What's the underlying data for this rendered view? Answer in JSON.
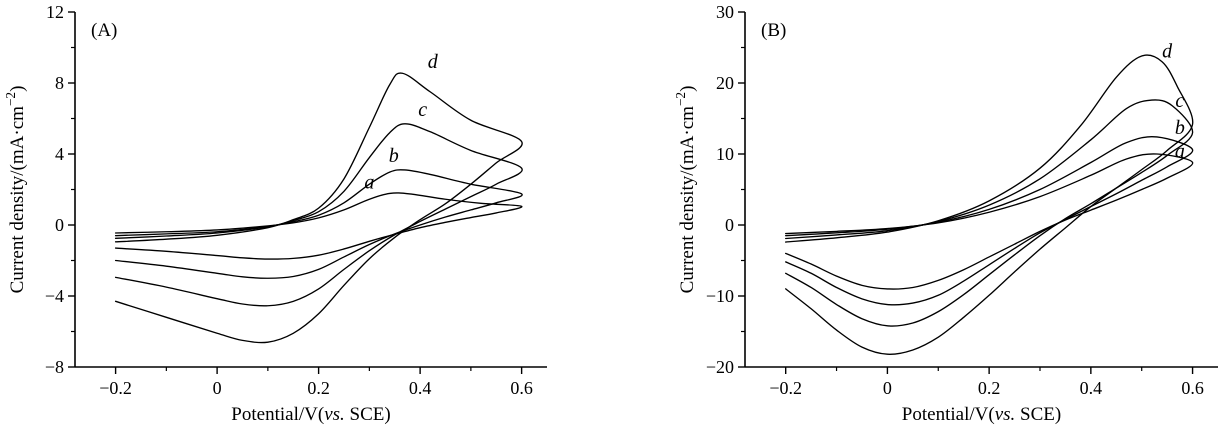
{
  "chart_data": [
    {
      "panel_tag": "(A)",
      "type": "line",
      "chart_kind": "cyclic-voltammogram",
      "title": "",
      "xlabel": "Potential/V(vs. SCE)",
      "ylabel": "Current density/(mA·cm−2)",
      "xlabel_parts": {
        "pre": "Potential/V(",
        "italic": "vs.",
        "post": " SCE)"
      },
      "ylabel_parts": {
        "pre": "Current density/(mA·cm",
        "sup": "−2",
        "post": ")"
      },
      "xlim": [
        -0.28,
        0.65
      ],
      "ylim": [
        -8,
        12
      ],
      "xticks": [
        -0.2,
        0,
        0.2,
        0.4,
        0.6
      ],
      "xtick_labels": [
        "−0.2",
        "0",
        "0.2",
        "0.4",
        "0.6"
      ],
      "xticks_minor": [
        -0.1,
        0.1,
        0.3,
        0.5
      ],
      "yticks": [
        -8,
        -4,
        0,
        4,
        8,
        12
      ],
      "ytick_labels": [
        "−8",
        "−4",
        "0",
        "4",
        "8",
        "12"
      ],
      "yticks_minor": [
        -6,
        -2,
        2,
        6,
        10
      ],
      "legend": "none",
      "grid": false,
      "series": [
        {
          "name": "a",
          "label_x": 0.3,
          "label_y": 2.05,
          "points": [
            [
              -0.2,
              -0.45
            ],
            [
              -0.1,
              -0.38
            ],
            [
              0.0,
              -0.28
            ],
            [
              0.1,
              -0.05
            ],
            [
              0.15,
              0.12
            ],
            [
              0.2,
              0.4
            ],
            [
              0.25,
              0.85
            ],
            [
              0.3,
              1.45
            ],
            [
              0.34,
              1.78
            ],
            [
              0.38,
              1.75
            ],
            [
              0.45,
              1.45
            ],
            [
              0.52,
              1.22
            ],
            [
              0.6,
              1.05
            ],
            [
              0.55,
              0.68
            ],
            [
              0.5,
              0.42
            ],
            [
              0.45,
              0.15
            ],
            [
              0.4,
              -0.15
            ],
            [
              0.35,
              -0.52
            ],
            [
              0.3,
              -0.92
            ],
            [
              0.25,
              -1.35
            ],
            [
              0.2,
              -1.7
            ],
            [
              0.15,
              -1.88
            ],
            [
              0.1,
              -1.92
            ],
            [
              0.05,
              -1.85
            ],
            [
              0.0,
              -1.72
            ],
            [
              -0.1,
              -1.48
            ],
            [
              -0.2,
              -1.3
            ]
          ]
        },
        {
          "name": "b",
          "label_x": 0.348,
          "label_y": 3.55,
          "points": [
            [
              -0.2,
              -0.6
            ],
            [
              -0.1,
              -0.5
            ],
            [
              0.0,
              -0.38
            ],
            [
              0.1,
              -0.08
            ],
            [
              0.15,
              0.18
            ],
            [
              0.2,
              0.55
            ],
            [
              0.25,
              1.25
            ],
            [
              0.3,
              2.3
            ],
            [
              0.34,
              2.98
            ],
            [
              0.37,
              3.1
            ],
            [
              0.42,
              2.85
            ],
            [
              0.5,
              2.3
            ],
            [
              0.6,
              1.75
            ],
            [
              0.55,
              1.25
            ],
            [
              0.5,
              0.85
            ],
            [
              0.45,
              0.45
            ],
            [
              0.4,
              0.0
            ],
            [
              0.35,
              -0.5
            ],
            [
              0.3,
              -1.1
            ],
            [
              0.25,
              -1.8
            ],
            [
              0.2,
              -2.5
            ],
            [
              0.15,
              -2.9
            ],
            [
              0.1,
              -3.0
            ],
            [
              0.05,
              -2.92
            ],
            [
              0.0,
              -2.72
            ],
            [
              -0.1,
              -2.32
            ],
            [
              -0.2,
              -2.0
            ]
          ]
        },
        {
          "name": "c",
          "label_x": 0.405,
          "label_y": 6.15,
          "points": [
            [
              -0.2,
              -0.75
            ],
            [
              -0.1,
              -0.62
            ],
            [
              0.0,
              -0.45
            ],
            [
              0.1,
              -0.1
            ],
            [
              0.15,
              0.25
            ],
            [
              0.2,
              0.75
            ],
            [
              0.25,
              1.9
            ],
            [
              0.3,
              3.8
            ],
            [
              0.34,
              5.2
            ],
            [
              0.37,
              5.7
            ],
            [
              0.42,
              5.25
            ],
            [
              0.5,
              4.2
            ],
            [
              0.6,
              3.2
            ],
            [
              0.55,
              2.3
            ],
            [
              0.5,
              1.6
            ],
            [
              0.45,
              0.9
            ],
            [
              0.4,
              0.2
            ],
            [
              0.35,
              -0.55
            ],
            [
              0.3,
              -1.45
            ],
            [
              0.25,
              -2.5
            ],
            [
              0.2,
              -3.6
            ],
            [
              0.15,
              -4.3
            ],
            [
              0.1,
              -4.55
            ],
            [
              0.05,
              -4.45
            ],
            [
              0.0,
              -4.15
            ],
            [
              -0.1,
              -3.5
            ],
            [
              -0.2,
              -2.95
            ]
          ]
        },
        {
          "name": "d",
          "label_x": 0.425,
          "label_y": 8.85,
          "points": [
            [
              -0.2,
              -0.95
            ],
            [
              -0.1,
              -0.8
            ],
            [
              0.0,
              -0.58
            ],
            [
              0.1,
              -0.15
            ],
            [
              0.15,
              0.3
            ],
            [
              0.2,
              0.95
            ],
            [
              0.25,
              2.6
            ],
            [
              0.3,
              5.5
            ],
            [
              0.34,
              7.9
            ],
            [
              0.365,
              8.55
            ],
            [
              0.42,
              7.5
            ],
            [
              0.5,
              5.9
            ],
            [
              0.6,
              4.7
            ],
            [
              0.55,
              3.5
            ],
            [
              0.5,
              2.3
            ],
            [
              0.45,
              1.2
            ],
            [
              0.4,
              0.3
            ],
            [
              0.35,
              -0.7
            ],
            [
              0.3,
              -1.9
            ],
            [
              0.25,
              -3.4
            ],
            [
              0.2,
              -5.0
            ],
            [
              0.15,
              -6.1
            ],
            [
              0.1,
              -6.6
            ],
            [
              0.05,
              -6.5
            ],
            [
              0.0,
              -6.1
            ],
            [
              -0.1,
              -5.2
            ],
            [
              -0.2,
              -4.3
            ]
          ]
        }
      ]
    },
    {
      "panel_tag": "(B)",
      "type": "line",
      "chart_kind": "cyclic-voltammogram",
      "title": "",
      "xlabel": "Potential/V(vs. SCE)",
      "ylabel": "Current density/(mA·cm−2)",
      "xlabel_parts": {
        "pre": "Potential/V(",
        "italic": "vs.",
        "post": " SCE)"
      },
      "ylabel_parts": {
        "pre": "Current density/(mA·cm",
        "sup": "−2",
        "post": ")"
      },
      "xlim": [
        -0.28,
        0.65
      ],
      "ylim": [
        -20,
        30
      ],
      "xticks": [
        -0.2,
        0,
        0.2,
        0.4,
        0.6
      ],
      "xtick_labels": [
        "−0.2",
        "0",
        "0.2",
        "0.4",
        "0.6"
      ],
      "xticks_minor": [
        -0.1,
        0.1,
        0.3,
        0.5
      ],
      "yticks": [
        -20,
        -10,
        0,
        10,
        20,
        30
      ],
      "ytick_labels": [
        "−20",
        "−10",
        "0",
        "10",
        "20",
        "30"
      ],
      "yticks_minor": [
        -15,
        -5,
        5,
        15,
        25
      ],
      "legend": "none",
      "grid": false,
      "series": [
        {
          "name": "a",
          "label_x": 0.575,
          "label_y": 9.5,
          "points": [
            [
              -0.2,
              -1.2
            ],
            [
              -0.1,
              -0.9
            ],
            [
              0.0,
              -0.5
            ],
            [
              0.1,
              0.3
            ],
            [
              0.2,
              1.8
            ],
            [
              0.3,
              4.0
            ],
            [
              0.4,
              7.0
            ],
            [
              0.47,
              9.3
            ],
            [
              0.53,
              10.0
            ],
            [
              0.6,
              8.8
            ],
            [
              0.55,
              6.6
            ],
            [
              0.5,
              5.0
            ],
            [
              0.45,
              3.5
            ],
            [
              0.4,
              2.1
            ],
            [
              0.35,
              0.7
            ],
            [
              0.3,
              -0.9
            ],
            [
              0.25,
              -2.7
            ],
            [
              0.2,
              -4.5
            ],
            [
              0.15,
              -6.3
            ],
            [
              0.1,
              -7.8
            ],
            [
              0.05,
              -8.8
            ],
            [
              0.0,
              -9.0
            ],
            [
              -0.05,
              -8.5
            ],
            [
              -0.1,
              -7.2
            ],
            [
              -0.15,
              -5.5
            ],
            [
              -0.2,
              -4.0
            ]
          ]
        },
        {
          "name": "b",
          "label_x": 0.575,
          "label_y": 12.8,
          "points": [
            [
              -0.2,
              -1.5
            ],
            [
              -0.1,
              -1.1
            ],
            [
              0.0,
              -0.6
            ],
            [
              0.1,
              0.4
            ],
            [
              0.2,
              2.2
            ],
            [
              0.3,
              5.0
            ],
            [
              0.4,
              8.8
            ],
            [
              0.47,
              11.6
            ],
            [
              0.53,
              12.4
            ],
            [
              0.6,
              10.6
            ],
            [
              0.55,
              8.2
            ],
            [
              0.5,
              6.3
            ],
            [
              0.45,
              4.4
            ],
            [
              0.4,
              2.6
            ],
            [
              0.35,
              0.8
            ],
            [
              0.3,
              -1.1
            ],
            [
              0.25,
              -3.3
            ],
            [
              0.2,
              -5.6
            ],
            [
              0.15,
              -7.9
            ],
            [
              0.1,
              -9.9
            ],
            [
              0.05,
              -11.0
            ],
            [
              0.0,
              -11.2
            ],
            [
              -0.05,
              -10.4
            ],
            [
              -0.1,
              -8.8
            ],
            [
              -0.15,
              -6.8
            ],
            [
              -0.2,
              -5.2
            ]
          ]
        },
        {
          "name": "c",
          "label_x": 0.575,
          "label_y": 16.6,
          "points": [
            [
              -0.2,
              -1.9
            ],
            [
              -0.1,
              -1.4
            ],
            [
              0.0,
              -0.8
            ],
            [
              0.1,
              0.5
            ],
            [
              0.2,
              2.8
            ],
            [
              0.3,
              6.5
            ],
            [
              0.4,
              12.0
            ],
            [
              0.47,
              16.4
            ],
            [
              0.52,
              17.6
            ],
            [
              0.56,
              16.8
            ],
            [
              0.6,
              13.0
            ],
            [
              0.55,
              9.8
            ],
            [
              0.5,
              7.4
            ],
            [
              0.45,
              5.2
            ],
            [
              0.4,
              3.0
            ],
            [
              0.35,
              0.9
            ],
            [
              0.3,
              -1.5
            ],
            [
              0.25,
              -4.2
            ],
            [
              0.2,
              -7.0
            ],
            [
              0.15,
              -9.8
            ],
            [
              0.1,
              -12.2
            ],
            [
              0.05,
              -13.8
            ],
            [
              0.0,
              -14.2
            ],
            [
              -0.05,
              -13.2
            ],
            [
              -0.1,
              -11.2
            ],
            [
              -0.15,
              -8.8
            ],
            [
              -0.2,
              -6.8
            ]
          ]
        },
        {
          "name": "d",
          "label_x": 0.55,
          "label_y": 23.6,
          "points": [
            [
              -0.2,
              -2.4
            ],
            [
              -0.1,
              -1.8
            ],
            [
              0.0,
              -1.0
            ],
            [
              0.1,
              0.6
            ],
            [
              0.2,
              3.4
            ],
            [
              0.3,
              8.0
            ],
            [
              0.38,
              14.0
            ],
            [
              0.45,
              20.8
            ],
            [
              0.5,
              23.8
            ],
            [
              0.54,
              23.0
            ],
            [
              0.57,
              19.5
            ],
            [
              0.6,
              14.2
            ],
            [
              0.55,
              10.5
            ],
            [
              0.5,
              7.8
            ],
            [
              0.45,
              5.2
            ],
            [
              0.4,
              2.6
            ],
            [
              0.35,
              -0.4
            ],
            [
              0.3,
              -3.4
            ],
            [
              0.25,
              -6.6
            ],
            [
              0.2,
              -9.9
            ],
            [
              0.15,
              -13.0
            ],
            [
              0.1,
              -15.8
            ],
            [
              0.05,
              -17.6
            ],
            [
              0.0,
              -18.2
            ],
            [
              -0.05,
              -17.2
            ],
            [
              -0.1,
              -14.8
            ],
            [
              -0.15,
              -11.8
            ],
            [
              -0.2,
              -9.0
            ]
          ]
        }
      ]
    }
  ]
}
